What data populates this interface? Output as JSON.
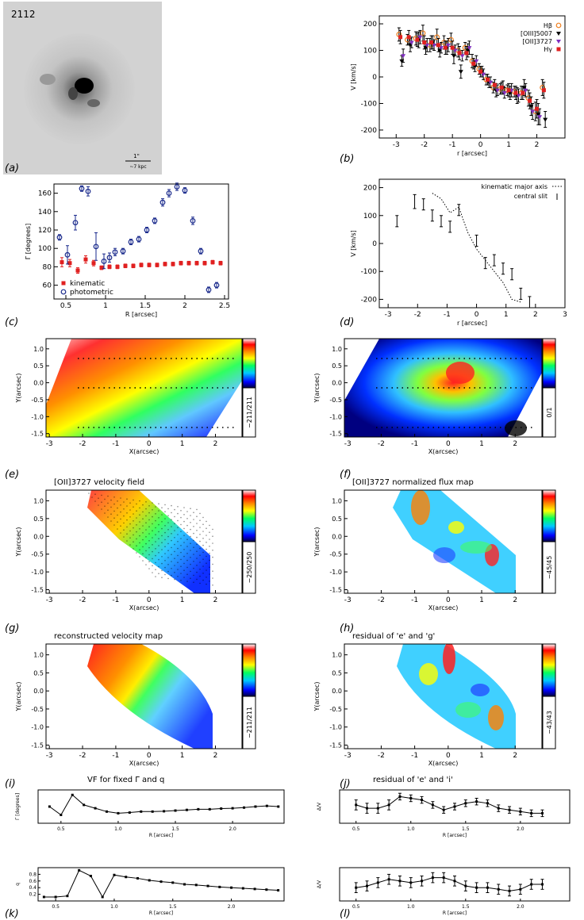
{
  "galaxy_id": "2112",
  "panel_labels": [
    "(a)",
    "(b)",
    "(c)",
    "(d)",
    "(e)",
    "(f)",
    "(g)",
    "(h)",
    "(i)",
    "(j)",
    "(k)",
    "(l)"
  ],
  "panel_a": {
    "scale_top": "1\"",
    "scale_bottom": "~7 kpc"
  },
  "chart_data": [
    {
      "id": "b",
      "type": "scatter",
      "xlabel": "r [arcsec]",
      "ylabel": "V [km/s]",
      "xlim": [
        -3.6,
        3.0
      ],
      "ylim": [
        -230,
        230
      ],
      "xticks": [
        -3,
        -2,
        -1,
        0,
        1,
        2
      ],
      "yticks": [
        -200,
        -100,
        0,
        100,
        200
      ],
      "legend_position": "top-right",
      "series": [
        {
          "name": "Hβ",
          "color": "#f08020",
          "marker": "o",
          "x": [
            -2.9,
            -2.6,
            -2.3,
            -2.05,
            -1.8,
            -1.55,
            -1.3,
            -1.05,
            -0.8,
            -0.55,
            -0.3,
            -0.05,
            0.2,
            0.45,
            0.7,
            0.95,
            1.2,
            1.45,
            1.7,
            1.95,
            2.2
          ],
          "y": [
            160,
            140,
            145,
            165,
            120,
            150,
            130,
            140,
            100,
            110,
            60,
            30,
            -10,
            -40,
            -45,
            -50,
            -55,
            -60,
            -80,
            -130,
            -40
          ],
          "err": [
            25,
            20,
            25,
            30,
            25,
            30,
            25,
            25,
            25,
            20,
            25,
            20,
            20,
            20,
            20,
            20,
            20,
            25,
            30,
            35,
            30
          ]
        },
        {
          "name": "[OIII]5007",
          "color": "#000000",
          "marker": "v",
          "x": [
            -2.8,
            -2.5,
            -2.2,
            -1.95,
            -1.7,
            -1.45,
            -1.2,
            -0.95,
            -0.7,
            -0.45,
            -0.2,
            0.05,
            0.3,
            0.55,
            0.8,
            1.05,
            1.3,
            1.55,
            1.8,
            2.05,
            2.3
          ],
          "y": [
            60,
            120,
            140,
            110,
            130,
            100,
            110,
            80,
            20,
            100,
            40,
            20,
            -20,
            -50,
            -40,
            -60,
            -70,
            -40,
            -110,
            -140,
            -160
          ],
          "err": [
            20,
            25,
            30,
            25,
            25,
            25,
            25,
            30,
            25,
            25,
            20,
            20,
            20,
            25,
            25,
            25,
            30,
            30,
            35,
            40,
            30
          ]
        },
        {
          "name": "[OII]3727",
          "color": "#8030c0",
          "marker": "v",
          "x": [
            -2.75,
            -2.45,
            -2.15,
            -1.9,
            -1.65,
            -1.4,
            -1.15,
            -0.9,
            -0.65,
            -0.4,
            -0.15,
            0.1,
            0.35,
            0.6,
            0.85,
            1.1,
            1.35,
            1.6,
            1.85,
            2.1
          ],
          "y": [
            80,
            130,
            150,
            120,
            120,
            110,
            120,
            100,
            80,
            110,
            60,
            10,
            -20,
            -50,
            -60,
            -50,
            -70,
            -50,
            -130,
            -150
          ],
          "err": [
            25,
            20,
            25,
            25,
            20,
            20,
            25,
            20,
            20,
            25,
            20,
            20,
            20,
            20,
            20,
            25,
            25,
            25,
            30,
            30
          ]
        },
        {
          "name": "Hγ",
          "color": "#e02020",
          "marker": "s",
          "x": [
            -2.85,
            -2.55,
            -2.25,
            -2.0,
            -1.75,
            -1.5,
            -1.25,
            -1.0,
            -0.75,
            -0.5,
            -0.25,
            0.0,
            0.25,
            0.5,
            0.75,
            1.0,
            1.25,
            1.5,
            1.75,
            2.0,
            2.25
          ],
          "y": [
            150,
            150,
            140,
            130,
            130,
            120,
            110,
            110,
            90,
            90,
            50,
            20,
            -10,
            -30,
            -40,
            -50,
            -60,
            -60,
            -90,
            -120,
            -50
          ],
          "err": [
            25,
            25,
            25,
            25,
            25,
            25,
            25,
            25,
            25,
            25,
            20,
            20,
            20,
            20,
            20,
            25,
            25,
            25,
            30,
            35,
            30
          ]
        }
      ]
    },
    {
      "id": "c",
      "type": "scatter",
      "xlabel": "R [arcsec]",
      "ylabel": "Γ [degrees]",
      "xlim": [
        0.35,
        2.55
      ],
      "ylim": [
        45,
        170
      ],
      "xticks": [
        0.5,
        1.0,
        1.5,
        2.0,
        2.5
      ],
      "yticks": [
        60,
        80,
        100,
        120,
        140,
        160
      ],
      "legend_position": "bottom-left",
      "series": [
        {
          "name": "kinematic",
          "color": "#e02020",
          "marker": "s",
          "x": [
            0.45,
            0.55,
            0.65,
            0.75,
            0.85,
            0.95,
            1.05,
            1.15,
            1.25,
            1.35,
            1.45,
            1.55,
            1.65,
            1.75,
            1.85,
            1.95,
            2.05,
            2.15,
            2.25,
            2.35,
            2.45
          ],
          "y": [
            85,
            84,
            76,
            88,
            84,
            79,
            80,
            80,
            81,
            81,
            82,
            82,
            82,
            83,
            83,
            84,
            84,
            84,
            84,
            85,
            84
          ],
          "err": [
            5,
            4,
            3,
            4,
            3,
            2,
            2,
            2,
            2,
            2,
            2,
            2,
            2,
            2,
            2,
            2,
            2,
            2,
            2,
            2,
            2
          ]
        },
        {
          "name": "photometric",
          "color": "#1a2a8c",
          "marker": "o",
          "x": [
            0.42,
            0.52,
            0.62,
            0.7,
            0.78,
            0.88,
            0.98,
            1.05,
            1.12,
            1.22,
            1.32,
            1.42,
            1.52,
            1.62,
            1.72,
            1.8,
            1.9,
            2.0,
            2.1,
            2.2,
            2.3,
            2.4
          ],
          "y": [
            112,
            93,
            128,
            165,
            162,
            102,
            86,
            90,
            96,
            97,
            107,
            110,
            120,
            130,
            150,
            160,
            167,
            163,
            130,
            97,
            55,
            60
          ],
          "err": [
            3,
            10,
            8,
            3,
            5,
            15,
            8,
            5,
            4,
            3,
            3,
            3,
            3,
            3,
            4,
            4,
            4,
            3,
            4,
            3,
            3,
            3
          ]
        }
      ]
    },
    {
      "id": "d",
      "type": "scatter",
      "xlabel": "r [arcsec]",
      "ylabel": "V [km/s]",
      "xlim": [
        -3.3,
        3.0
      ],
      "ylim": [
        -230,
        230
      ],
      "xticks": [
        -3,
        -2,
        -1,
        0,
        1,
        2,
        3
      ],
      "yticks": [
        -200,
        -100,
        0,
        100,
        200
      ],
      "legend_position": "top-right",
      "series": [
        {
          "name": "kinematic major axis",
          "color": "#000000",
          "marker": "line-dotted",
          "x": [
            -1.5,
            -1.2,
            -0.9,
            -0.6,
            -0.3,
            0.0,
            0.3,
            0.6,
            0.9,
            1.2,
            1.5
          ],
          "y": [
            180,
            160,
            110,
            130,
            40,
            -20,
            -60,
            -100,
            -140,
            -200,
            -210
          ]
        },
        {
          "name": "central slit",
          "color": "#000000",
          "marker": "errorbar",
          "x": [
            -2.7,
            -2.1,
            -1.8,
            -1.5,
            -1.2,
            -0.9,
            -0.6,
            0.0,
            0.3,
            0.6,
            0.9,
            1.2,
            1.5,
            1.8
          ],
          "y": [
            80,
            150,
            140,
            100,
            80,
            60,
            120,
            10,
            -70,
            -60,
            -90,
            -110,
            -180,
            -210
          ],
          "err": [
            20,
            25,
            20,
            20,
            20,
            20,
            20,
            20,
            20,
            20,
            20,
            20,
            20,
            20
          ]
        }
      ]
    },
    {
      "id": "i",
      "type": "line",
      "xlabel": "R [arcsec]",
      "ylabel": "Γ [degrees]",
      "xlim": [
        0.3,
        2.45
      ],
      "xticks": [
        0.5,
        1.0,
        1.5,
        2.0
      ],
      "x": [
        0.4,
        0.5,
        0.6,
        0.7,
        0.8,
        0.9,
        1.0,
        1.1,
        1.2,
        1.3,
        1.4,
        1.5,
        1.6,
        1.7,
        1.8,
        1.9,
        2.0,
        2.1,
        2.2,
        2.3,
        2.4
      ],
      "y": [
        0.5,
        0.25,
        0.85,
        0.55,
        0.45,
        0.35,
        0.3,
        0.32,
        0.35,
        0.35,
        0.36,
        0.38,
        0.4,
        0.42,
        0.42,
        0.44,
        0.45,
        0.47,
        0.5,
        0.52,
        0.5
      ]
    },
    {
      "id": "j",
      "type": "line",
      "xlabel": "R [arcsec]",
      "ylabel": "Δ/V",
      "xticks": [
        0.5,
        1.0,
        1.5,
        2.0
      ],
      "x": [
        0.5,
        0.6,
        0.7,
        0.8,
        0.9,
        1.0,
        1.1,
        1.2,
        1.3,
        1.4,
        1.5,
        1.6,
        1.7,
        1.8,
        1.9,
        2.0,
        2.1,
        2.2
      ],
      "y": [
        0.55,
        0.45,
        0.45,
        0.55,
        0.8,
        0.75,
        0.7,
        0.55,
        0.4,
        0.5,
        0.6,
        0.65,
        0.6,
        0.45,
        0.4,
        0.35,
        0.3,
        0.3
      ],
      "err": [
        0.15,
        0.15,
        0.15,
        0.15,
        0.1,
        0.1,
        0.1,
        0.1,
        0.1,
        0.1,
        0.1,
        0.1,
        0.1,
        0.1,
        0.1,
        0.1,
        0.1,
        0.1
      ]
    },
    {
      "id": "k",
      "type": "line",
      "xlabel": "R [arcsec]",
      "ylabel": "q",
      "yticks": [
        0.2,
        0.4,
        0.6,
        0.8
      ],
      "xticks": [
        0.5,
        1.0,
        1.5,
        2.0
      ],
      "x": [
        0.4,
        0.5,
        0.6,
        0.7,
        0.8,
        0.9,
        1.0,
        1.1,
        1.2,
        1.3,
        1.4,
        1.5,
        1.6,
        1.7,
        1.8,
        1.9,
        2.0,
        2.1,
        2.2,
        2.3,
        2.4
      ],
      "y": [
        0.12,
        0.12,
        0.15,
        0.92,
        0.75,
        0.12,
        0.78,
        0.72,
        0.68,
        0.62,
        0.58,
        0.55,
        0.5,
        0.48,
        0.45,
        0.42,
        0.4,
        0.38,
        0.36,
        0.34,
        0.32
      ]
    },
    {
      "id": "l",
      "type": "line",
      "xlabel": "R [arcsec]",
      "ylabel": "Δ/V",
      "xticks": [
        0.5,
        1.0,
        1.5,
        2.0
      ],
      "x": [
        0.5,
        0.6,
        0.7,
        0.8,
        0.9,
        1.0,
        1.1,
        1.2,
        1.3,
        1.4,
        1.5,
        1.6,
        1.7,
        1.8,
        1.9,
        2.0,
        2.1,
        2.2
      ],
      "y": [
        0.4,
        0.45,
        0.55,
        0.65,
        0.6,
        0.55,
        0.6,
        0.7,
        0.7,
        0.6,
        0.45,
        0.4,
        0.4,
        0.35,
        0.3,
        0.35,
        0.5,
        0.5
      ],
      "err": [
        0.15,
        0.15,
        0.15,
        0.15,
        0.15,
        0.15,
        0.15,
        0.15,
        0.15,
        0.15,
        0.15,
        0.15,
        0.15,
        0.15,
        0.15,
        0.15,
        0.15,
        0.15
      ]
    },
    {
      "id": "e",
      "type": "heatmap",
      "xlabel": "X(arcsec)",
      "ylabel": "Y(arcsec)",
      "colorbar_label": "−211/211"
    },
    {
      "id": "f",
      "type": "heatmap",
      "xlabel": "X(arcsec)",
      "ylabel": "Y(arcsec)",
      "colorbar_label": "0/1"
    },
    {
      "id": "g",
      "type": "heatmap",
      "title": "[OII]3727 velocity field",
      "xlabel": "X(arcsec)",
      "ylabel": "Y(arcsec)",
      "colorbar_label": "−250/250"
    },
    {
      "id": "h",
      "type": "heatmap",
      "title": "[OII]3727 normalized flux map",
      "xlabel": "X(arcsec)",
      "ylabel": "Y(arcsec)",
      "colorbar_label": "−45/45"
    },
    {
      "id": "i_map",
      "type": "heatmap",
      "title": "reconstructed velocity map",
      "xlabel": "X(arcsec)",
      "ylabel": "Y(arcsec)",
      "colorbar_label": "−211/211"
    },
    {
      "id": "j_map",
      "type": "heatmap",
      "title": "residual of 'e' and 'g'",
      "xlabel": "X(arcsec)",
      "ylabel": "Y(arcsec)",
      "colorbar_label": "−43/43"
    }
  ],
  "bottom_titles": {
    "i": "VF for fixed Γ and q",
    "j": "residual of 'e' and 'i'"
  },
  "colors": {
    "red": "#e02020",
    "blue": "#1a2a8c",
    "orange": "#f08020",
    "purple": "#8030c0"
  }
}
